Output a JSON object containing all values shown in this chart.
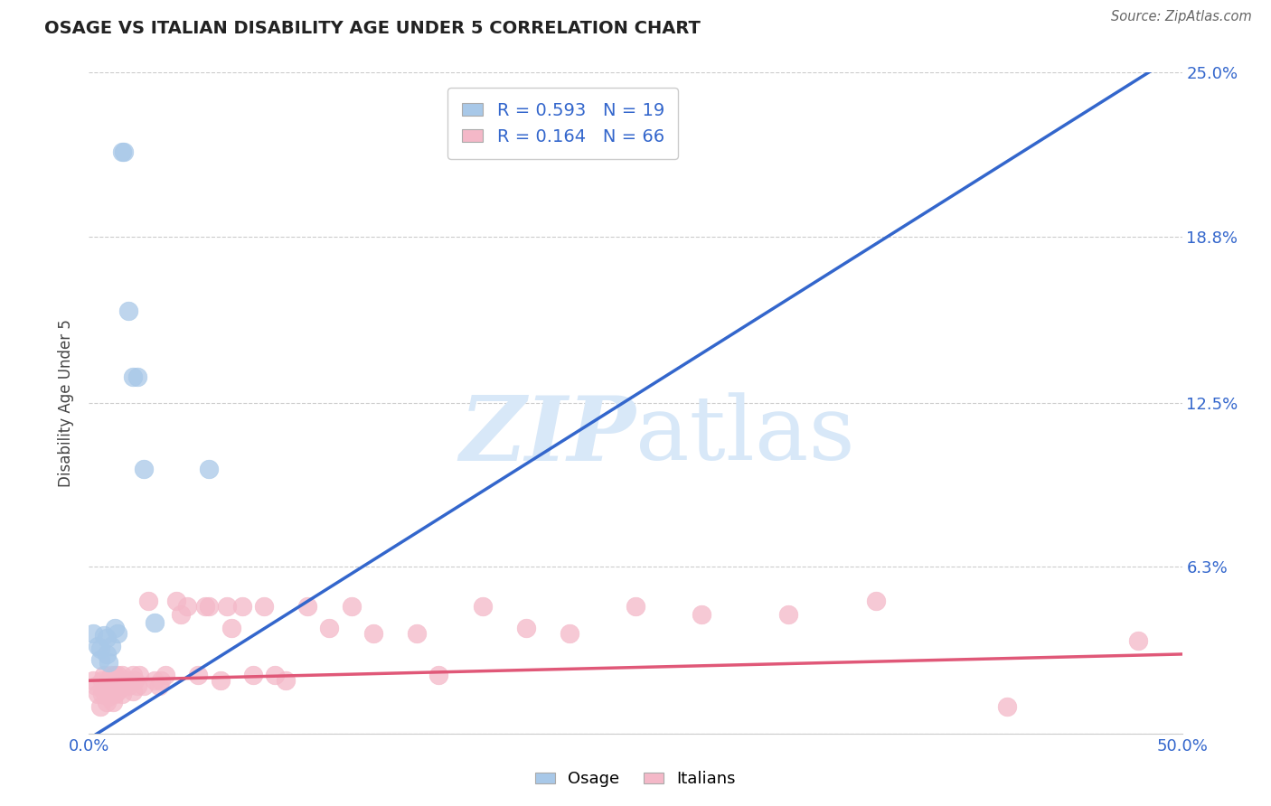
{
  "title": "OSAGE VS ITALIAN DISABILITY AGE UNDER 5 CORRELATION CHART",
  "source": "Source: ZipAtlas.com",
  "ylabel": "Disability Age Under 5",
  "xlim": [
    0.0,
    0.5
  ],
  "ylim": [
    0.0,
    0.25
  ],
  "xticks": [
    0.0,
    0.125,
    0.25,
    0.375,
    0.5
  ],
  "xticklabels": [
    "0.0%",
    "",
    "",
    "",
    "50.0%"
  ],
  "ytick_positions": [
    0.0,
    0.063,
    0.125,
    0.188,
    0.25
  ],
  "ytick_labels": [
    "",
    "6.3%",
    "12.5%",
    "18.8%",
    "25.0%"
  ],
  "osage_R": 0.593,
  "osage_N": 19,
  "italian_R": 0.164,
  "italian_N": 66,
  "osage_color": "#A8C8E8",
  "italian_color": "#F4B8C8",
  "osage_line_color": "#3366CC",
  "italian_line_color": "#E05878",
  "legend_text_color": "#3366CC",
  "watermark_color": "#D8E8F8",
  "osage_x": [
    0.002,
    0.004,
    0.005,
    0.005,
    0.007,
    0.008,
    0.008,
    0.009,
    0.01,
    0.012,
    0.013,
    0.015,
    0.016,
    0.018,
    0.02,
    0.022,
    0.025,
    0.03,
    0.055
  ],
  "osage_y": [
    0.038,
    0.033,
    0.032,
    0.028,
    0.037,
    0.036,
    0.03,
    0.027,
    0.033,
    0.04,
    0.038,
    0.22,
    0.22,
    0.16,
    0.135,
    0.135,
    0.1,
    0.042,
    0.1
  ],
  "italian_x": [
    0.002,
    0.003,
    0.004,
    0.005,
    0.006,
    0.006,
    0.007,
    0.007,
    0.008,
    0.008,
    0.009,
    0.009,
    0.01,
    0.01,
    0.011,
    0.011,
    0.012,
    0.012,
    0.013,
    0.013,
    0.014,
    0.015,
    0.015,
    0.016,
    0.017,
    0.018,
    0.02,
    0.02,
    0.021,
    0.022,
    0.023,
    0.025,
    0.027,
    0.03,
    0.032,
    0.033,
    0.035,
    0.04,
    0.042,
    0.045,
    0.05,
    0.053,
    0.055,
    0.06,
    0.063,
    0.065,
    0.07,
    0.075,
    0.08,
    0.085,
    0.09,
    0.1,
    0.11,
    0.12,
    0.13,
    0.15,
    0.16,
    0.18,
    0.2,
    0.22,
    0.25,
    0.28,
    0.32,
    0.36,
    0.42,
    0.48
  ],
  "italian_y": [
    0.02,
    0.018,
    0.015,
    0.01,
    0.02,
    0.015,
    0.022,
    0.016,
    0.018,
    0.012,
    0.02,
    0.014,
    0.022,
    0.016,
    0.02,
    0.012,
    0.022,
    0.015,
    0.022,
    0.016,
    0.02,
    0.022,
    0.015,
    0.018,
    0.02,
    0.018,
    0.022,
    0.016,
    0.02,
    0.018,
    0.022,
    0.018,
    0.05,
    0.02,
    0.018,
    0.02,
    0.022,
    0.05,
    0.045,
    0.048,
    0.022,
    0.048,
    0.048,
    0.02,
    0.048,
    0.04,
    0.048,
    0.022,
    0.048,
    0.022,
    0.02,
    0.048,
    0.04,
    0.048,
    0.038,
    0.038,
    0.022,
    0.048,
    0.04,
    0.038,
    0.048,
    0.045,
    0.045,
    0.05,
    0.01,
    0.035
  ],
  "osage_line_x": [
    0.0,
    0.5
  ],
  "osage_line_y_intercept": -0.002,
  "osage_line_slope": 0.52,
  "italian_line_x": [
    0.0,
    0.5
  ],
  "italian_line_y_intercept": 0.02,
  "italian_line_slope": 0.02
}
